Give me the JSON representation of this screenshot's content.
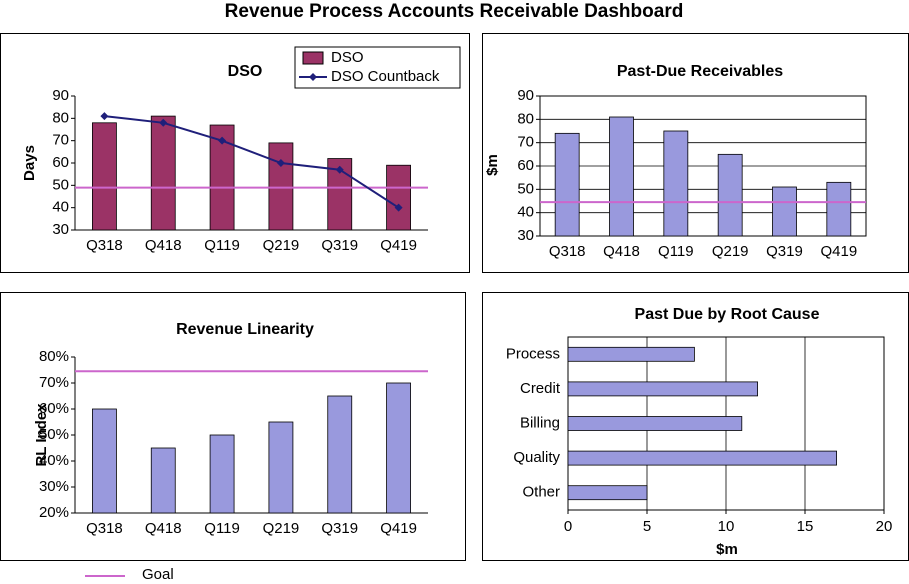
{
  "title": "Revenue Process Accounts Receivable Dashboard",
  "goal_legend": "Goal",
  "goal_color": "#cc66cc",
  "chart_data": [
    {
      "type": "bar",
      "title": "DSO",
      "y_label": "Days",
      "categories": [
        "Q318",
        "Q418",
        "Q119",
        "Q219",
        "Q319",
        "Q419"
      ],
      "series": [
        {
          "name": "DSO",
          "type": "bar",
          "color": "#9b3366",
          "values": [
            78,
            81,
            77,
            69,
            62,
            59
          ]
        },
        {
          "name": "DSO Countback",
          "type": "line",
          "color": "#1f1f7a",
          "values": [
            81,
            78,
            70,
            60,
            57,
            40
          ]
        }
      ],
      "goal": 49,
      "ylim": [
        30,
        90
      ],
      "yticks": [
        30,
        40,
        50,
        60,
        70,
        80,
        90
      ],
      "grid": false
    },
    {
      "type": "bar",
      "title": "Past-Due  Receivables",
      "y_label": "$m",
      "categories": [
        "Q318",
        "Q418",
        "Q119",
        "Q219",
        "Q319",
        "Q419"
      ],
      "values": [
        74,
        81,
        75,
        65,
        51,
        53
      ],
      "color": "#9999dd",
      "goal": 44.5,
      "ylim": [
        30,
        90
      ],
      "yticks": [
        30,
        40,
        50,
        60,
        70,
        80,
        90
      ],
      "grid": true
    },
    {
      "type": "bar",
      "title": "Revenue Linearity",
      "y_label": "RL Index",
      "categories": [
        "Q318",
        "Q418",
        "Q119",
        "Q219",
        "Q319",
        "Q419"
      ],
      "values": [
        60,
        45,
        50,
        55,
        65,
        70
      ],
      "color": "#9999dd",
      "goal": 74.5,
      "ylim": [
        20,
        80
      ],
      "yticks": [
        {
          "value": 20,
          "label": "20%"
        },
        {
          "value": 30,
          "label": "30%"
        },
        {
          "value": 40,
          "label": "40%"
        },
        {
          "value": 50,
          "label": "50%"
        },
        {
          "value": 60,
          "label": "60%"
        },
        {
          "value": 70,
          "label": "70%"
        },
        {
          "value": 80,
          "label": "80%"
        }
      ],
      "grid": false
    },
    {
      "type": "barh",
      "title": "Past Due by Root Cause",
      "x_label": "$m",
      "categories": [
        "Process",
        "Credit",
        "Billing",
        "Quality",
        "Other"
      ],
      "values": [
        8,
        12,
        11,
        17,
        5
      ],
      "color": "#9999dd",
      "xlim": [
        0,
        20
      ],
      "xticks": [
        0,
        5,
        10,
        15,
        20
      ],
      "grid": true
    }
  ]
}
